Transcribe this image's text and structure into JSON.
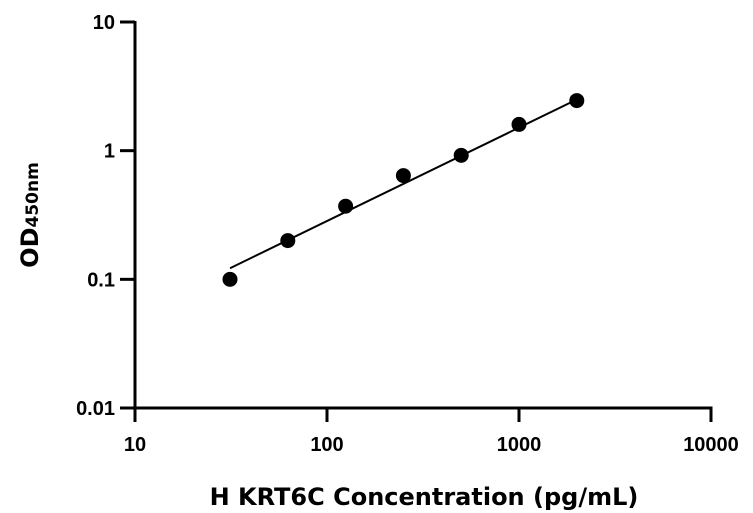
{
  "chart_data": {
    "type": "scatter",
    "title": "",
    "xlabel": "H KRT6C Concentration (pg/mL)",
    "ylabel_main": "OD",
    "ylabel_sub": "450nm",
    "x_scale": "log",
    "y_scale": "log",
    "xlim": [
      10,
      10000
    ],
    "ylim": [
      0.01,
      10
    ],
    "x_ticks": [
      10,
      100,
      1000,
      10000
    ],
    "x_tick_labels": [
      "10",
      "100",
      "1000",
      "10000"
    ],
    "y_ticks": [
      0.01,
      0.1,
      1,
      10
    ],
    "y_tick_labels": [
      "0.01",
      "0.1",
      "1",
      "10"
    ],
    "grid": false,
    "legend": "none",
    "series": [
      {
        "x": [
          31.25,
          62.5,
          125,
          250,
          500,
          1000,
          2000
        ],
        "y": [
          0.1,
          0.2,
          0.37,
          0.64,
          0.92,
          1.6,
          2.45
        ],
        "fit": "line",
        "fit_x": [
          31.25,
          2000
        ],
        "fit_y": [
          0.122,
          2.5
        ]
      }
    ],
    "colors": {
      "points": "#000000",
      "axes": "#000000",
      "fit": "#000000"
    }
  }
}
